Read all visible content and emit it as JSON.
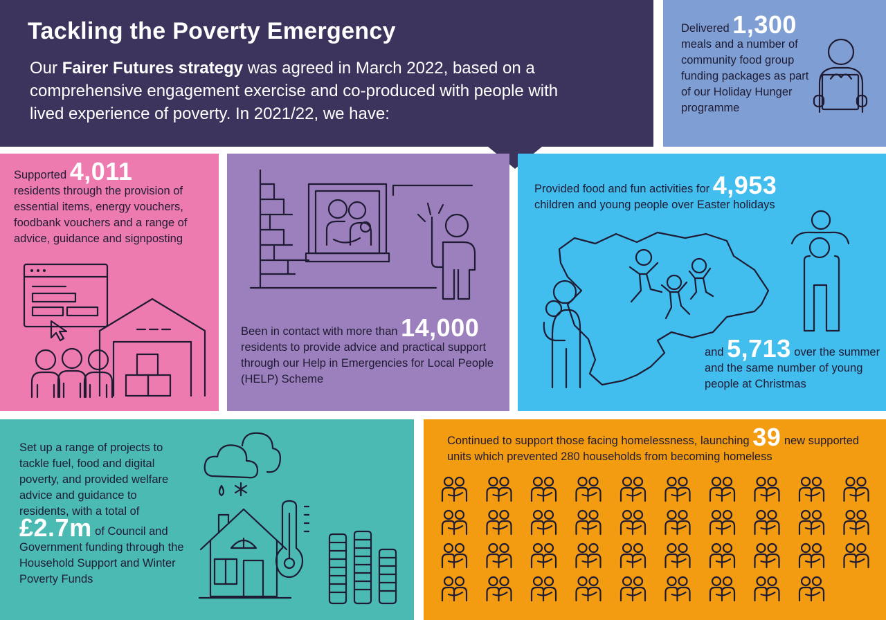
{
  "header": {
    "title": "Tackling the Poverty Emergency",
    "intro_1": "Our ",
    "intro_strategy": "Fairer Futures strategy",
    "intro_2": " was agreed in March 2022, based on a comprehensive engagement exercise and co-produced with people with lived experience of poverty.  In 2021/22, we have:"
  },
  "meals": {
    "pre": "Delivered ",
    "value": "1,300",
    "post": "meals and a number of community food group funding packages as part of our Holiday Hunger programme"
  },
  "supported": {
    "pre": "Supported ",
    "value": "4,011",
    "post": "residents through the provision of essential items, energy vouchers, foodbank vouchers and a range of advice, guidance and signposting"
  },
  "contact": {
    "pre": "Been in contact with more than ",
    "value": "14,000",
    "post": "residents to provide advice and practical support through our Help in Emergencies for Local People (HELP) Scheme"
  },
  "easter": {
    "pre": "Provided food and fun activities for ",
    "value": "4,953",
    "post": "children and young people over Easter holidays"
  },
  "summer": {
    "pre": "and ",
    "value": "5,713",
    "post": " over the summer and the same number of young people at Christmas"
  },
  "projects": {
    "pre": "Set up a range of projects to tackle fuel, food and digital poverty, and provided welfare advice and guidance to residents, with a total of",
    "value": "£2.7m",
    "post": " of Council and Government funding through the Household Support and Winter Poverty Funds"
  },
  "homeless": {
    "pre": "Continued to support those facing homelessness, launching ",
    "value": "39",
    "post": " new supported units which prevented 280 households from becoming homeless",
    "icon_count": 39
  },
  "colors": {
    "navy": "#3c345c",
    "periwinkle": "#7f9fd4",
    "pink": "#ee7bb0",
    "purple": "#9b80bd",
    "sky": "#41bdee",
    "teal": "#4abab2",
    "orange": "#f39c12",
    "ink": "#1f1b33"
  },
  "icons": [
    "browser-window-icon",
    "cursor-icon",
    "warehouse-icon",
    "people-group-icon",
    "brick-wall-icon",
    "window-family-icon",
    "knocking-person-icon",
    "map-icon",
    "parent-child-icon",
    "jumping-children-icon",
    "shoulder-ride-icon",
    "cloud-icon",
    "house-icon",
    "thermometer-icon",
    "coin-stack-icon",
    "couple-icon",
    "food-box-person-icon"
  ]
}
